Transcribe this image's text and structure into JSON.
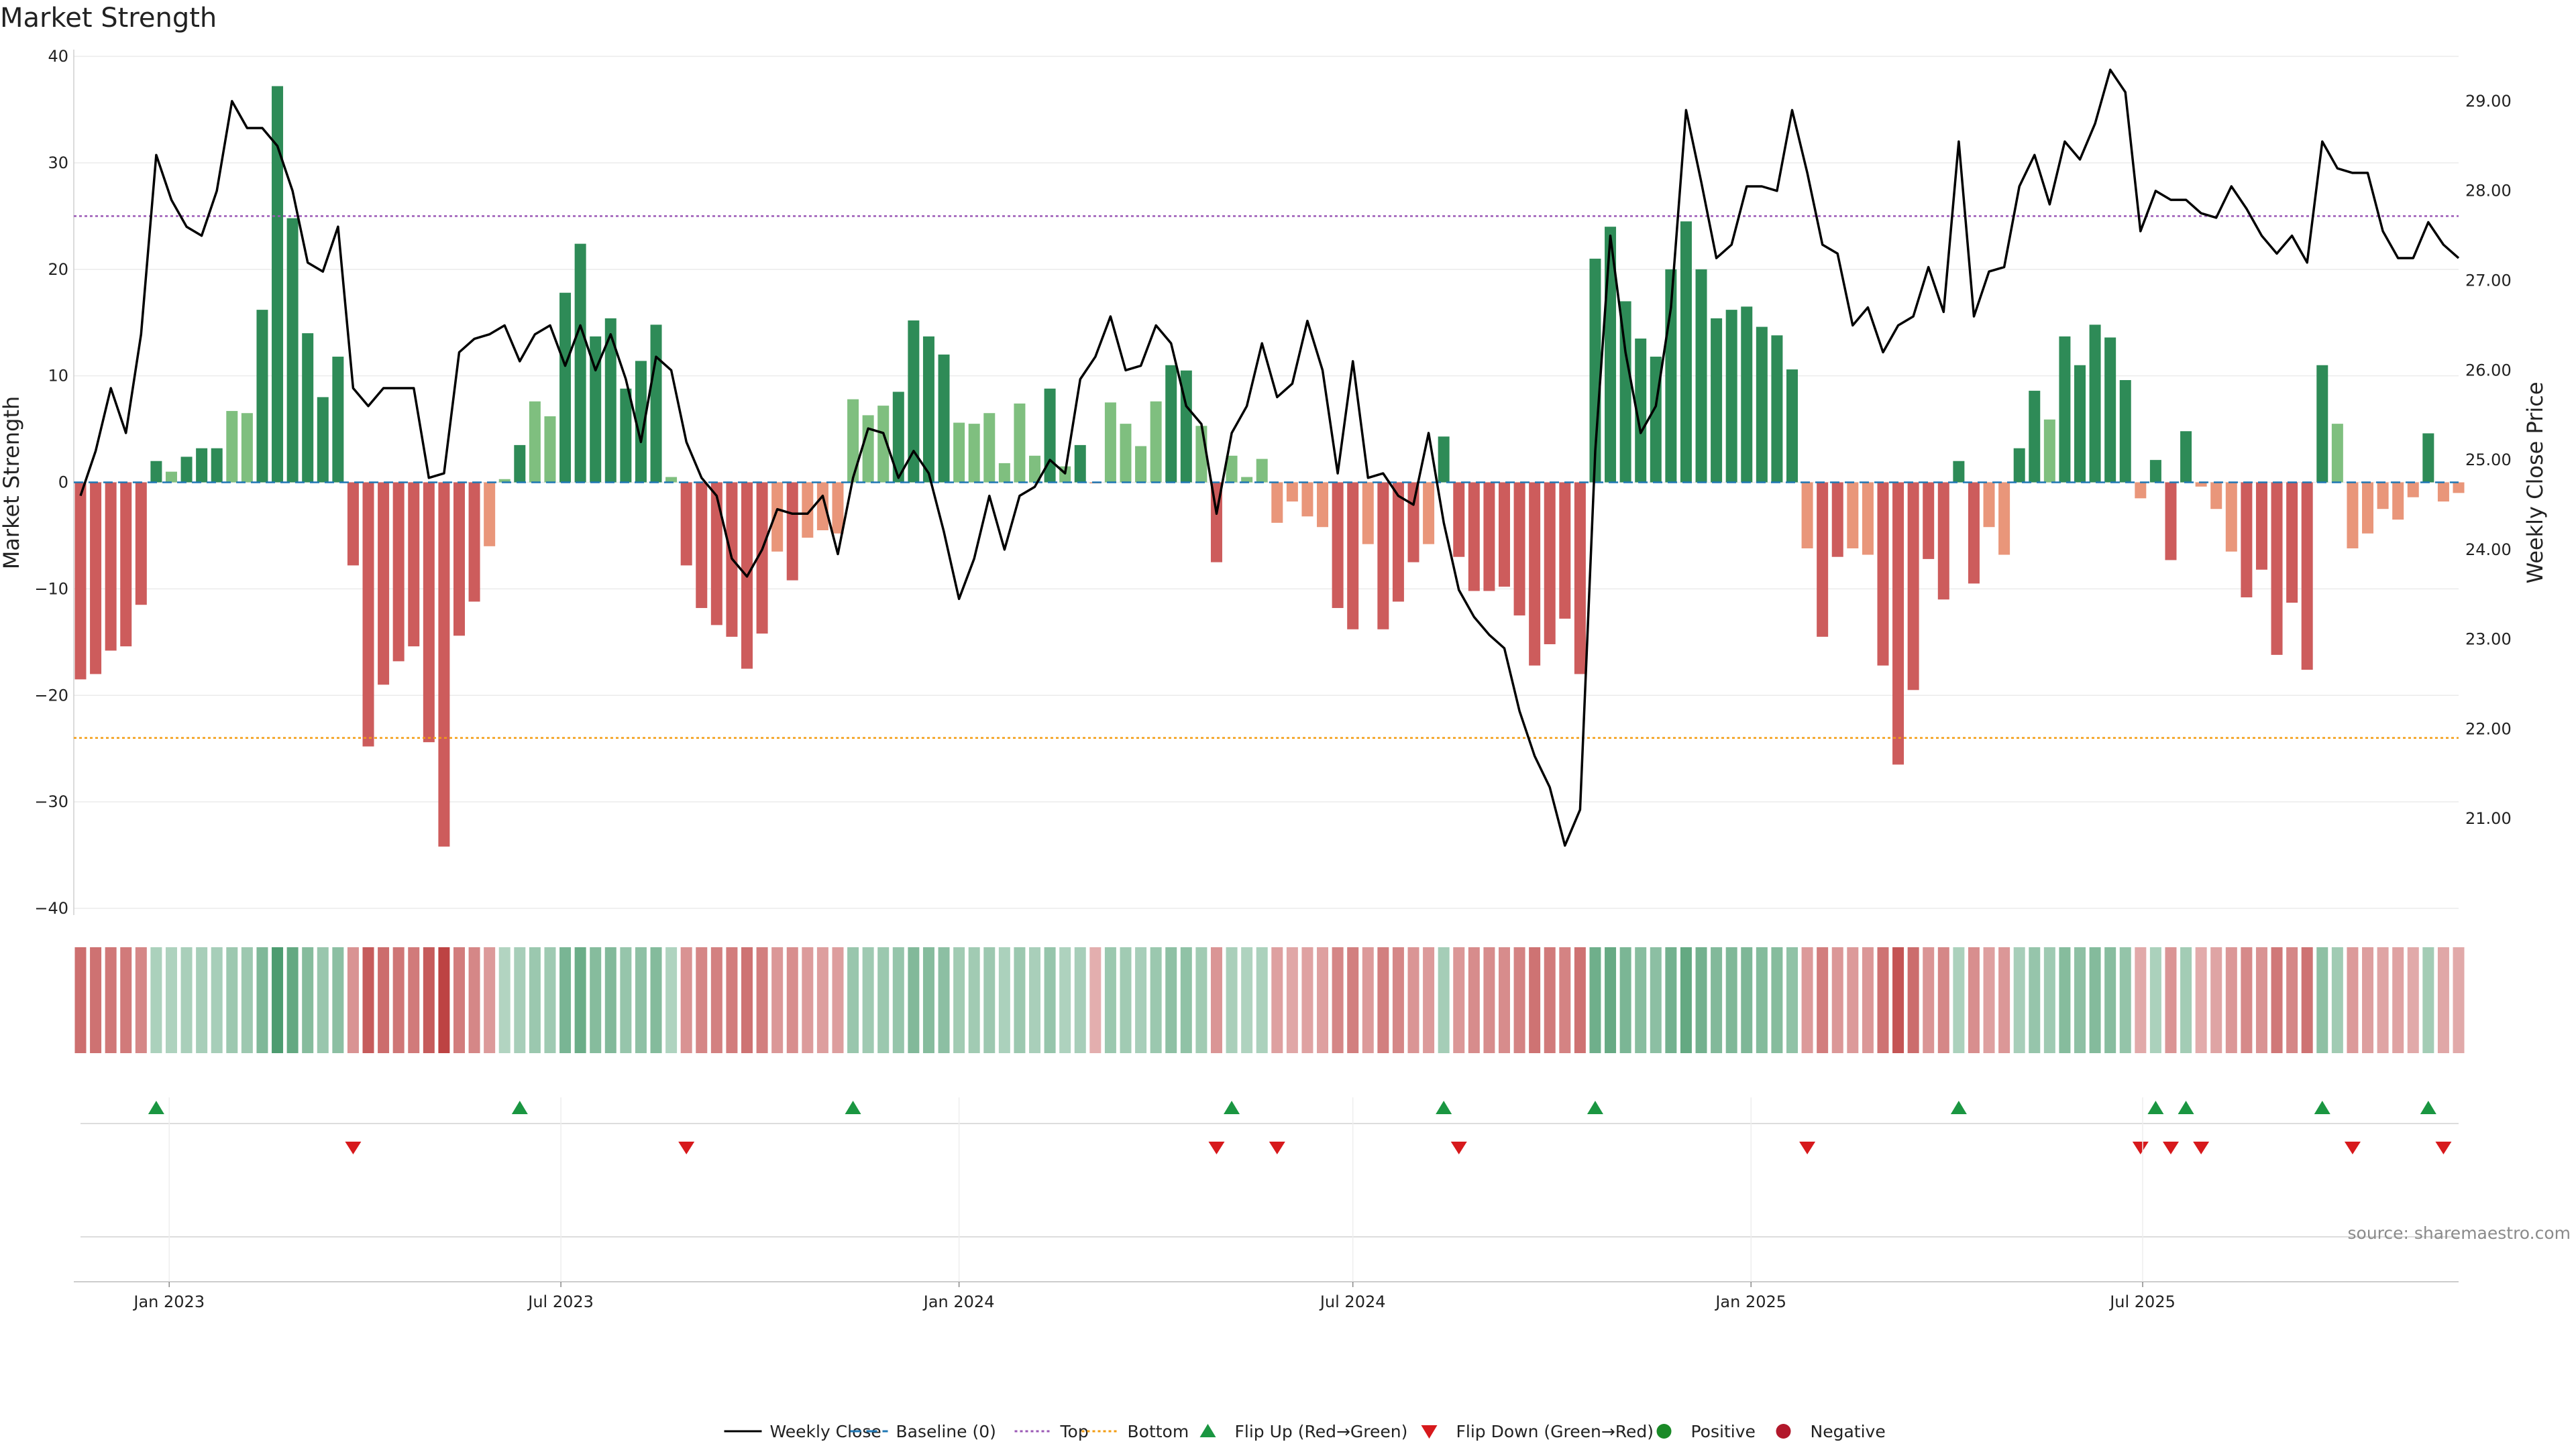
{
  "chart_data": {
    "type": "bar",
    "title": "Market Strength",
    "ylabel": "Market Strength",
    "y2label": "Weekly Close Price",
    "ylim": [
      -40,
      40
    ],
    "y2lim": [
      20,
      29.5
    ],
    "yticks": [
      -40,
      -30,
      -20,
      -10,
      0,
      10,
      20,
      30,
      40
    ],
    "y2ticks": [
      "21.00",
      "22.00",
      "23.00",
      "24.00",
      "25.00",
      "26.00",
      "27.00",
      "28.00",
      "29.00"
    ],
    "top_threshold": 25,
    "bottom_threshold": -24,
    "x_start": "2022-11-21",
    "x_end": "2025-10-27",
    "xticks": [
      {
        "date": "2023-01-01",
        "label": "Jan 2023"
      },
      {
        "date": "2023-07-01",
        "label": "Jul 2023"
      },
      {
        "date": "2024-01-01",
        "label": "Jan 2024"
      },
      {
        "date": "2024-07-01",
        "label": "Jul 2024"
      },
      {
        "date": "2025-01-01",
        "label": "Jan 2025"
      },
      {
        "date": "2025-07-01",
        "label": "Jul 2025"
      }
    ],
    "weeks": [
      {
        "date": "2022-11-21",
        "strength": -18.5,
        "close": 24.6
      },
      {
        "date": "2022-11-28",
        "strength": -18,
        "close": 25.1
      },
      {
        "date": "2022-12-05",
        "strength": -15.8,
        "close": 25.8
      },
      {
        "date": "2022-12-12",
        "strength": -15.4,
        "close": 25.3
      },
      {
        "date": "2022-12-19",
        "strength": -11.5,
        "close": 26.4
      },
      {
        "date": "2022-12-26",
        "strength": 2,
        "close": 28.4
      },
      {
        "date": "2023-01-02",
        "strength": 1,
        "close": 27.9
      },
      {
        "date": "2023-01-09",
        "strength": 2.4,
        "close": 27.6
      },
      {
        "date": "2023-01-16",
        "strength": 3.2,
        "close": 27.5
      },
      {
        "date": "2023-01-23",
        "strength": 3.2,
        "close": 28.0
      },
      {
        "date": "2023-01-30",
        "strength": 6.7,
        "close": 29.0
      },
      {
        "date": "2023-02-06",
        "strength": 6.5,
        "close": 28.7
      },
      {
        "date": "2023-02-13",
        "strength": 16.2,
        "close": 28.7
      },
      {
        "date": "2023-02-20",
        "strength": 37.2,
        "close": 28.5
      },
      {
        "date": "2023-02-27",
        "strength": 24.8,
        "close": 28.0
      },
      {
        "date": "2023-03-06",
        "strength": 14,
        "close": 27.2
      },
      {
        "date": "2023-03-13",
        "strength": 8,
        "close": 27.1
      },
      {
        "date": "2023-03-20",
        "strength": 11.8,
        "close": 27.6
      },
      {
        "date": "2023-03-27",
        "strength": -7.8,
        "close": 25.8
      },
      {
        "date": "2023-04-03",
        "strength": -24.8,
        "close": 25.6
      },
      {
        "date": "2023-04-10",
        "strength": -19,
        "close": 25.8
      },
      {
        "date": "2023-04-17",
        "strength": -16.8,
        "close": 25.8
      },
      {
        "date": "2023-04-24",
        "strength": -15.4,
        "close": 25.8
      },
      {
        "date": "2023-05-01",
        "strength": -24.4,
        "close": 24.8
      },
      {
        "date": "2023-05-08",
        "strength": -34.2,
        "close": 24.85
      },
      {
        "date": "2023-05-15",
        "strength": -14.4,
        "close": 26.2
      },
      {
        "date": "2023-05-22",
        "strength": -11.2,
        "close": 26.35
      },
      {
        "date": "2023-05-29",
        "strength": -6,
        "close": 26.4
      },
      {
        "date": "2023-06-05",
        "strength": 0.3,
        "close": 26.5
      },
      {
        "date": "2023-06-12",
        "strength": 3.5,
        "close": 26.1
      },
      {
        "date": "2023-06-19",
        "strength": 7.6,
        "close": 26.4
      },
      {
        "date": "2023-06-26",
        "strength": 6.2,
        "close": 26.5
      },
      {
        "date": "2023-07-03",
        "strength": 17.8,
        "close": 26.05
      },
      {
        "date": "2023-07-10",
        "strength": 22.4,
        "close": 26.5
      },
      {
        "date": "2023-07-17",
        "strength": 13.7,
        "close": 26.0
      },
      {
        "date": "2023-07-24",
        "strength": 15.4,
        "close": 26.4
      },
      {
        "date": "2023-07-31",
        "strength": 8.8,
        "close": 25.9
      },
      {
        "date": "2023-08-07",
        "strength": 11.4,
        "close": 25.2
      },
      {
        "date": "2023-08-14",
        "strength": 14.8,
        "close": 26.15
      },
      {
        "date": "2023-08-21",
        "strength": 0.5,
        "close": 26.0
      },
      {
        "date": "2023-08-28",
        "strength": -7.8,
        "close": 25.2
      },
      {
        "date": "2023-09-04",
        "strength": -11.8,
        "close": 24.8
      },
      {
        "date": "2023-09-11",
        "strength": -13.4,
        "close": 24.6
      },
      {
        "date": "2023-09-18",
        "strength": -14.5,
        "close": 23.9
      },
      {
        "date": "2023-09-25",
        "strength": -17.5,
        "close": 23.7
      },
      {
        "date": "2023-10-02",
        "strength": -14.2,
        "close": 24.0
      },
      {
        "date": "2023-10-09",
        "strength": -6.5,
        "close": 24.45
      },
      {
        "date": "2023-10-16",
        "strength": -9.2,
        "close": 24.4
      },
      {
        "date": "2023-10-23",
        "strength": -5.2,
        "close": 24.4
      },
      {
        "date": "2023-10-30",
        "strength": -4.5,
        "close": 24.6
      },
      {
        "date": "2023-11-06",
        "strength": -4.8,
        "close": 23.95
      },
      {
        "date": "2023-11-13",
        "strength": 7.8,
        "close": 24.8
      },
      {
        "date": "2023-11-20",
        "strength": 6.3,
        "close": 25.35
      },
      {
        "date": "2023-11-27",
        "strength": 7.2,
        "close": 25.3
      },
      {
        "date": "2023-12-04",
        "strength": 8.5,
        "close": 24.8
      },
      {
        "date": "2023-12-11",
        "strength": 15.2,
        "close": 25.1
      },
      {
        "date": "2023-12-18",
        "strength": 13.7,
        "close": 24.85
      },
      {
        "date": "2023-12-25",
        "strength": 12,
        "close": 24.2
      },
      {
        "date": "2024-01-01",
        "strength": 5.6,
        "close": 23.45
      },
      {
        "date": "2024-01-08",
        "strength": 5.5,
        "close": 23.9
      },
      {
        "date": "2024-01-15",
        "strength": 6.5,
        "close": 24.6
      },
      {
        "date": "2024-01-22",
        "strength": 1.8,
        "close": 24.0
      },
      {
        "date": "2024-01-29",
        "strength": 7.4,
        "close": 24.6
      },
      {
        "date": "2024-02-05",
        "strength": 2.5,
        "close": 24.7
      },
      {
        "date": "2024-02-12",
        "strength": 8.8,
        "close": 25.0
      },
      {
        "date": "2024-02-19",
        "strength": 1.5,
        "close": 24.85
      },
      {
        "date": "2024-02-26",
        "strength": 3.5,
        "close": 25.9
      },
      {
        "date": "2024-03-04",
        "strength": -0.1,
        "close": 26.15
      },
      {
        "date": "2024-03-11",
        "strength": 7.5,
        "close": 26.6
      },
      {
        "date": "2024-03-18",
        "strength": 5.5,
        "close": 26.0
      },
      {
        "date": "2024-03-25",
        "strength": 3.4,
        "close": 26.05
      },
      {
        "date": "2024-04-01",
        "strength": 7.6,
        "close": 26.5
      },
      {
        "date": "2024-04-08",
        "strength": 11,
        "close": 26.3
      },
      {
        "date": "2024-04-15",
        "strength": 10.5,
        "close": 25.6
      },
      {
        "date": "2024-04-22",
        "strength": 5.3,
        "close": 25.4
      },
      {
        "date": "2024-04-29",
        "strength": -7.5,
        "close": 24.4
      },
      {
        "date": "2024-05-06",
        "strength": 2.5,
        "close": 25.3
      },
      {
        "date": "2024-05-13",
        "strength": 0.5,
        "close": 25.6
      },
      {
        "date": "2024-05-20",
        "strength": 2.2,
        "close": 26.3
      },
      {
        "date": "2024-05-27",
        "strength": -3.8,
        "close": 25.7
      },
      {
        "date": "2024-06-03",
        "strength": -1.8,
        "close": 25.85
      },
      {
        "date": "2024-06-10",
        "strength": -3.2,
        "close": 26.55
      },
      {
        "date": "2024-06-17",
        "strength": -4.2,
        "close": 26.0
      },
      {
        "date": "2024-06-24",
        "strength": -11.8,
        "close": 24.85
      },
      {
        "date": "2024-07-01",
        "strength": -13.8,
        "close": 26.1
      },
      {
        "date": "2024-07-08",
        "strength": -5.8,
        "close": 24.8
      },
      {
        "date": "2024-07-15",
        "strength": -13.8,
        "close": 24.85
      },
      {
        "date": "2024-07-22",
        "strength": -11.2,
        "close": 24.6
      },
      {
        "date": "2024-07-29",
        "strength": -7.5,
        "close": 24.5
      },
      {
        "date": "2024-08-05",
        "strength": -5.8,
        "close": 25.3
      },
      {
        "date": "2024-08-12",
        "strength": 4.3,
        "close": 24.3
      },
      {
        "date": "2024-08-19",
        "strength": -7,
        "close": 23.55
      },
      {
        "date": "2024-08-26",
        "strength": -10.2,
        "close": 23.25
      },
      {
        "date": "2024-09-02",
        "strength": -10.2,
        "close": 23.05
      },
      {
        "date": "2024-09-09",
        "strength": -9.8,
        "close": 22.9
      },
      {
        "date": "2024-09-16",
        "strength": -12.5,
        "close": 22.2
      },
      {
        "date": "2024-09-23",
        "strength": -17.2,
        "close": 21.7
      },
      {
        "date": "2024-09-30",
        "strength": -15.2,
        "close": 21.35
      },
      {
        "date": "2024-10-07",
        "strength": -12.8,
        "close": 20.7
      },
      {
        "date": "2024-10-14",
        "strength": -18,
        "close": 21.1
      },
      {
        "date": "2024-10-21",
        "strength": 21,
        "close": 25.1
      },
      {
        "date": "2024-10-28",
        "strength": 24,
        "close": 27.5
      },
      {
        "date": "2024-11-04",
        "strength": 17,
        "close": 26.2
      },
      {
        "date": "2024-11-11",
        "strength": 13.5,
        "close": 25.3
      },
      {
        "date": "2024-11-18",
        "strength": 11.8,
        "close": 25.6
      },
      {
        "date": "2024-11-25",
        "strength": 20,
        "close": 26.7
      },
      {
        "date": "2024-12-02",
        "strength": 24.5,
        "close": 28.9
      },
      {
        "date": "2024-12-09",
        "strength": 20,
        "close": 28.1
      },
      {
        "date": "2024-12-16",
        "strength": 15.4,
        "close": 27.25
      },
      {
        "date": "2024-12-23",
        "strength": 16.2,
        "close": 27.4
      },
      {
        "date": "2024-12-30",
        "strength": 16.5,
        "close": 28.05
      },
      {
        "date": "2025-01-06",
        "strength": 14.6,
        "close": 28.05
      },
      {
        "date": "2025-01-13",
        "strength": 13.8,
        "close": 28.0
      },
      {
        "date": "2025-01-20",
        "strength": 10.6,
        "close": 28.9
      },
      {
        "date": "2025-01-27",
        "strength": -6.2,
        "close": 28.2
      },
      {
        "date": "2025-02-03",
        "strength": -14.5,
        "close": 27.4
      },
      {
        "date": "2025-02-10",
        "strength": -7,
        "close": 27.3
      },
      {
        "date": "2025-02-17",
        "strength": -6.2,
        "close": 26.5
      },
      {
        "date": "2025-02-24",
        "strength": -6.8,
        "close": 26.7
      },
      {
        "date": "2025-03-03",
        "strength": -17.2,
        "close": 26.2
      },
      {
        "date": "2025-03-10",
        "strength": -26.5,
        "close": 26.5
      },
      {
        "date": "2025-03-17",
        "strength": -19.5,
        "close": 26.6
      },
      {
        "date": "2025-03-24",
        "strength": -7.2,
        "close": 27.15
      },
      {
        "date": "2025-03-31",
        "strength": -11,
        "close": 26.65
      },
      {
        "date": "2025-04-07",
        "strength": 2,
        "close": 28.55
      },
      {
        "date": "2025-04-14",
        "strength": -9.5,
        "close": 26.6
      },
      {
        "date": "2025-04-21",
        "strength": -4.2,
        "close": 27.1
      },
      {
        "date": "2025-04-28",
        "strength": -6.8,
        "close": 27.15
      },
      {
        "date": "2025-05-05",
        "strength": 3.2,
        "close": 28.05
      },
      {
        "date": "2025-05-12",
        "strength": 8.6,
        "close": 28.4
      },
      {
        "date": "2025-05-19",
        "strength": 5.9,
        "close": 27.85
      },
      {
        "date": "2025-05-26",
        "strength": 13.7,
        "close": 28.55
      },
      {
        "date": "2025-06-02",
        "strength": 11,
        "close": 28.35
      },
      {
        "date": "2025-06-09",
        "strength": 14.8,
        "close": 28.75
      },
      {
        "date": "2025-06-16",
        "strength": 13.6,
        "close": 29.35
      },
      {
        "date": "2025-06-23",
        "strength": 9.6,
        "close": 29.1
      },
      {
        "date": "2025-06-30",
        "strength": -1.5,
        "close": 27.55
      },
      {
        "date": "2025-07-07",
        "strength": 2.1,
        "close": 28.0
      },
      {
        "date": "2025-07-14",
        "strength": -7.3,
        "close": 27.9
      },
      {
        "date": "2025-07-21",
        "strength": 4.8,
        "close": 27.9
      },
      {
        "date": "2025-07-28",
        "strength": -0.4,
        "close": 27.75
      },
      {
        "date": "2025-08-04",
        "strength": -2.5,
        "close": 27.7
      },
      {
        "date": "2025-08-11",
        "strength": -6.5,
        "close": 28.05
      },
      {
        "date": "2025-08-18",
        "strength": -10.8,
        "close": 27.8
      },
      {
        "date": "2025-08-25",
        "strength": -8.2,
        "close": 27.5
      },
      {
        "date": "2025-09-01",
        "strength": -16.2,
        "close": 27.3
      },
      {
        "date": "2025-09-08",
        "strength": -11.3,
        "close": 27.5
      },
      {
        "date": "2025-09-15",
        "strength": -17.6,
        "close": 27.2
      },
      {
        "date": "2025-09-22",
        "strength": 11,
        "close": 28.55
      },
      {
        "date": "2025-09-29",
        "strength": 5.5,
        "close": 28.25
      },
      {
        "date": "2025-10-06",
        "strength": -6.2,
        "close": 28.2
      },
      {
        "date": "2025-10-13",
        "strength": -4.8,
        "close": 28.2
      },
      {
        "date": "2025-10-20",
        "strength": -2.5,
        "close": 27.55
      },
      {
        "date": "2025-10-27",
        "strength": -3.5,
        "close": 27.25
      }
    ],
    "tail_weeks": [
      {
        "date": "2025-11-03",
        "strength": -1.4,
        "close": 27.25
      },
      {
        "date": "2025-11-10",
        "strength": 4.6,
        "close": 27.65
      },
      {
        "date": "2025-11-17",
        "strength": -1.8,
        "close": 27.4
      },
      {
        "date": "2025-11-24",
        "strength": -1,
        "close": 27.25
      }
    ],
    "flip_up_dates": [
      "2022-12-26",
      "2023-06-12",
      "2023-11-13",
      "2024-05-06",
      "2024-08-12",
      "2024-10-21",
      "2025-04-07",
      "2025-07-07",
      "2025-07-21",
      "2025-09-22",
      "2025-11-10"
    ],
    "flip_down_dates": [
      "2023-03-27",
      "2023-08-28",
      "2024-04-29",
      "2024-05-27",
      "2024-08-19",
      "2025-01-27",
      "2025-06-30",
      "2025-07-14",
      "2025-07-28",
      "2025-10-06",
      "2025-11-17"
    ],
    "colors": {
      "pos_strong": "#2e8b57",
      "pos_light": "#7fbf7f",
      "neg_strong": "#cd5c5c",
      "neg_light": "#e9967a",
      "line": "#000000",
      "baseline": "#1f77b4",
      "top": "#9b59b6",
      "bottom": "#f39c12",
      "flip_up": "#1a9641",
      "flip_down": "#d7191c",
      "positive": "#1a8a27",
      "negative": "#b2182b"
    },
    "legend": [
      {
        "label": "Weekly Close",
        "marker": "line-solid"
      },
      {
        "label": "Baseline (0)",
        "marker": "line-dashed"
      },
      {
        "label": "Top",
        "marker": "line-dotted-top"
      },
      {
        "label": "Bottom",
        "marker": "line-dotted-bottom"
      },
      {
        "label": "Flip Up (Red→Green)",
        "marker": "triangle-up"
      },
      {
        "label": "Flip Down (Green→Red)",
        "marker": "triangle-down"
      },
      {
        "label": "Positive",
        "marker": "dot-positive"
      },
      {
        "label": "Negative",
        "marker": "dot-negative"
      }
    ],
    "legend_placement": "bottom-center",
    "grid": true
  },
  "source": "source: sharemaestro.com"
}
